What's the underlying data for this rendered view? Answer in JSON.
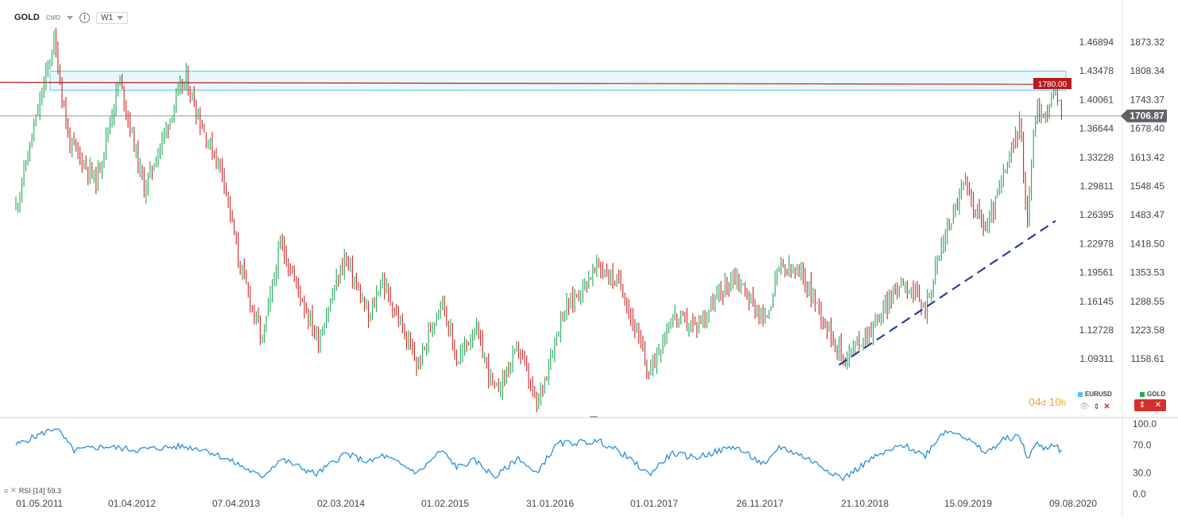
{
  "header": {
    "symbol": "GOLD",
    "instrument_type": "CMD",
    "timeframe": "W1"
  },
  "countdown": {
    "days": "04",
    "day_unit": "d",
    "hours": "10",
    "hour_unit": "h"
  },
  "legend": {
    "eurusd_label": "EURUSD",
    "eurusd_color": "#4fc3f7",
    "gold_label": "GOLD",
    "gold_color": "#26a65b"
  },
  "rsi": {
    "label": "RSI [14]",
    "value": "59.3",
    "color": "#2b8fd8"
  },
  "colors": {
    "up": "#26a65b",
    "down": "#c62828",
    "trend": "#2c3e9e",
    "resistance_line": "#b71c1c",
    "zone_fill": "#e8f7fb",
    "zone_border": "#6cc5df"
  },
  "chart_data": {
    "type": "candlestick",
    "series_name": "GOLD",
    "timeframe": "W1",
    "right_axis_gold": [
      "1873.32",
      "1808.34",
      "1743.37",
      "1678.40",
      "1613.42",
      "1548.45",
      "1483.47",
      "1418.50",
      "1353.53",
      "1288.55",
      "1223.58",
      "1158.61"
    ],
    "left_axis_eurusd": [
      "1.46894",
      "1.43478",
      "1.40061",
      "1.36644",
      "1.33228",
      "1.29811",
      "1.26395",
      "1.22978",
      "1.19561",
      "1.16145",
      "1.12728",
      "1.09311"
    ],
    "x_labels": [
      "01.05.2011",
      "01.04.2012",
      "07.04.2013",
      "02.03.2014",
      "01.02.2015",
      "31.01.2016",
      "01.01.2017",
      "26.11.2017",
      "21.10.2018",
      "15.09.2019",
      "09.08.2020"
    ],
    "ylim": [
      1115,
      1905
    ],
    "current_price": "1706.87",
    "resistance_label": "1780.00",
    "resistance_zone": [
      1765,
      1808
    ],
    "trendline": {
      "start": [
        "2018-08-01",
        1145
      ],
      "end": [
        "2020-06-15",
        1470
      ]
    },
    "price_path": [
      [
        "2011-05-01",
        1500
      ],
      [
        "2011-08-20",
        1880
      ],
      [
        "2011-10-01",
        1650
      ],
      [
        "2011-12-20",
        1560
      ],
      [
        "2012-02-25",
        1790
      ],
      [
        "2012-05-15",
        1540
      ],
      [
        "2012-09-15",
        1760
      ],
      [
        "2012-10-10",
        1790
      ],
      [
        "2012-12-20",
        1660
      ],
      [
        "2013-02-20",
        1580
      ],
      [
        "2013-04-15",
        1380
      ],
      [
        "2013-06-28",
        1200
      ],
      [
        "2013-08-25",
        1420
      ],
      [
        "2013-12-20",
        1200
      ],
      [
        "2014-03-15",
        1390
      ],
      [
        "2014-06-01",
        1245
      ],
      [
        "2014-07-10",
        1340
      ],
      [
        "2014-11-05",
        1140
      ],
      [
        "2015-01-20",
        1300
      ],
      [
        "2015-03-15",
        1150
      ],
      [
        "2015-05-15",
        1230
      ],
      [
        "2015-07-25",
        1080
      ],
      [
        "2015-10-15",
        1185
      ],
      [
        "2015-12-15",
        1050
      ],
      [
        "2016-03-10",
        1260
      ],
      [
        "2016-07-05",
        1370
      ],
      [
        "2016-09-20",
        1320
      ],
      [
        "2016-12-15",
        1125
      ],
      [
        "2017-02-25",
        1255
      ],
      [
        "2017-05-10",
        1230
      ],
      [
        "2017-09-08",
        1350
      ],
      [
        "2017-12-12",
        1240
      ],
      [
        "2018-01-25",
        1365
      ],
      [
        "2018-04-10",
        1345
      ],
      [
        "2018-08-15",
        1160
      ],
      [
        "2018-11-10",
        1225
      ],
      [
        "2019-02-20",
        1340
      ],
      [
        "2019-05-01",
        1270
      ],
      [
        "2019-06-25",
        1420
      ],
      [
        "2019-09-01",
        1555
      ],
      [
        "2019-11-10",
        1450
      ],
      [
        "2020-01-05",
        1570
      ],
      [
        "2020-02-24",
        1690
      ],
      [
        "2020-03-18",
        1470
      ],
      [
        "2020-04-15",
        1730
      ],
      [
        "2020-05-10",
        1700
      ],
      [
        "2020-06-12",
        1765
      ],
      [
        "2020-07-05",
        1706.87
      ]
    ],
    "eurusd_path": [],
    "rsi_axis": [
      "100.0",
      "70.0",
      "30.0",
      "0.0"
    ],
    "rsi_path": [
      [
        "2011-05-01",
        70
      ],
      [
        "2011-08-25",
        95
      ],
      [
        "2011-10-15",
        62
      ],
      [
        "2012-01-15",
        68
      ],
      [
        "2012-04-15",
        63
      ],
      [
        "2012-09-20",
        68
      ],
      [
        "2012-12-15",
        64
      ],
      [
        "2013-04-15",
        42
      ],
      [
        "2013-06-25",
        24
      ],
      [
        "2013-08-25",
        50
      ],
      [
        "2013-12-15",
        28
      ],
      [
        "2014-03-15",
        58
      ],
      [
        "2014-06-01",
        45
      ],
      [
        "2014-07-15",
        55
      ],
      [
        "2014-11-05",
        30
      ],
      [
        "2015-01-20",
        62
      ],
      [
        "2015-03-15",
        38
      ],
      [
        "2015-05-15",
        48
      ],
      [
        "2015-07-25",
        24
      ],
      [
        "2015-10-15",
        52
      ],
      [
        "2015-12-10",
        28
      ],
      [
        "2016-02-25",
        72
      ],
      [
        "2016-07-10",
        75
      ],
      [
        "2016-09-20",
        58
      ],
      [
        "2016-12-15",
        28
      ],
      [
        "2017-02-25",
        58
      ],
      [
        "2017-05-10",
        52
      ],
      [
        "2017-09-08",
        68
      ],
      [
        "2017-12-15",
        40
      ],
      [
        "2018-01-25",
        68
      ],
      [
        "2018-04-10",
        54
      ],
      [
        "2018-08-15",
        22
      ],
      [
        "2018-11-10",
        50
      ],
      [
        "2019-02-20",
        70
      ],
      [
        "2019-05-01",
        55
      ],
      [
        "2019-06-25",
        88
      ],
      [
        "2019-08-10",
        90
      ],
      [
        "2019-09-01",
        82
      ],
      [
        "2019-11-10",
        58
      ],
      [
        "2020-01-05",
        78
      ],
      [
        "2020-02-24",
        83
      ],
      [
        "2020-03-18",
        50
      ],
      [
        "2020-04-15",
        72
      ],
      [
        "2020-05-10",
        65
      ],
      [
        "2020-06-12",
        72
      ],
      [
        "2020-07-05",
        59.3
      ]
    ]
  }
}
